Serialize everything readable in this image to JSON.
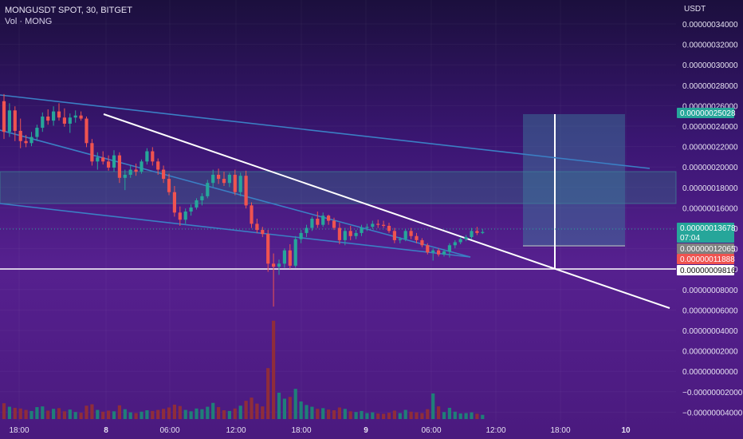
{
  "header": {
    "symbol_line": "MONGUSDT SPOT, 30, BITGET",
    "volume_line": "Vol · MONG"
  },
  "colors": {
    "up": "#26a69a",
    "down": "#ef5350",
    "vol_up": "#1f7f78",
    "vol_down": "#8f2d3a",
    "trendline": "#ffffff",
    "channel": "#3b7fc4",
    "zone_fill": "#2a8f8a",
    "target_fill": "#3f7fa0",
    "current_label": "#26a69a",
    "red_label": "#ef5350",
    "gray_label": "#808080"
  },
  "chart_data": {
    "type": "candlestick",
    "title": "MONGUSDT SPOT, 30, BITGET",
    "series_name": "MONGUSDT",
    "volume_label": "Vol · MONG",
    "currency": "USDT",
    "y_ticks": [
      "0.00000034000",
      "0.00000032000",
      "0.00000030000",
      "0.00000028000",
      "0.00000026000",
      "0.00000024000",
      "0.00000022000",
      "0.00000020000",
      "0.00000018000",
      "0.00000016000",
      "0.00000014000",
      "0.00000012000",
      "0.00000010000",
      "0.00000008000",
      "0.00000006000",
      "0.00000004000",
      "0.00000002000",
      "0.00000000000",
      "−0.00000002000",
      "−0.00000004000"
    ],
    "x_ticks": [
      "18:00",
      "8",
      "06:00",
      "12:00",
      "18:00",
      "9",
      "06:00",
      "12:00",
      "18:00",
      "10"
    ],
    "price_labels": [
      {
        "key": "target",
        "text": "0.00000025028",
        "value": 2.5028e-07
      },
      {
        "key": "current",
        "text": "0.00000013678",
        "value": 1.3678e-07,
        "countdown": "07:04"
      },
      {
        "key": "gray",
        "text": "0.00000012065",
        "value": 1.2065e-07
      },
      {
        "key": "red",
        "text": "0.00000011888",
        "value": 1.1888e-07
      },
      {
        "key": "support",
        "text": "0.00000009816",
        "value": 9.816e-08
      }
    ],
    "candles": [
      {
        "o": 26.5,
        "h": 27.2,
        "l": 22.8,
        "c": 23.5,
        "v": 4.5
      },
      {
        "o": 23.5,
        "h": 26.3,
        "l": 23.0,
        "c": 25.6,
        "v": 3.5
      },
      {
        "o": 25.6,
        "h": 26.0,
        "l": 22.6,
        "c": 23.6,
        "v": 3.2
      },
      {
        "o": 23.6,
        "h": 24.8,
        "l": 21.9,
        "c": 22.6,
        "v": 3.0
      },
      {
        "o": 22.6,
        "h": 23.2,
        "l": 22.0,
        "c": 22.4,
        "v": 2.6
      },
      {
        "o": 22.4,
        "h": 23.5,
        "l": 22.1,
        "c": 23.0,
        "v": 2.3
      },
      {
        "o": 23.0,
        "h": 24.2,
        "l": 22.6,
        "c": 23.9,
        "v": 3.4
      },
      {
        "o": 23.9,
        "h": 25.4,
        "l": 23.5,
        "c": 25.0,
        "v": 3.6
      },
      {
        "o": 25.0,
        "h": 25.7,
        "l": 24.2,
        "c": 24.6,
        "v": 2.4
      },
      {
        "o": 24.6,
        "h": 26.0,
        "l": 24.1,
        "c": 25.5,
        "v": 2.9
      },
      {
        "o": 25.5,
        "h": 26.3,
        "l": 24.6,
        "c": 24.9,
        "v": 3.1
      },
      {
        "o": 24.9,
        "h": 25.8,
        "l": 24.0,
        "c": 24.3,
        "v": 2.2
      },
      {
        "o": 24.3,
        "h": 25.3,
        "l": 23.4,
        "c": 24.9,
        "v": 2.7
      },
      {
        "o": 24.9,
        "h": 25.6,
        "l": 24.4,
        "c": 25.1,
        "v": 2.0
      },
      {
        "o": 25.1,
        "h": 25.5,
        "l": 24.6,
        "c": 24.8,
        "v": 1.8
      },
      {
        "o": 24.8,
        "h": 25.0,
        "l": 22.0,
        "c": 22.4,
        "v": 3.8
      },
      {
        "o": 22.4,
        "h": 22.8,
        "l": 20.2,
        "c": 20.6,
        "v": 4.2
      },
      {
        "o": 20.6,
        "h": 21.5,
        "l": 19.8,
        "c": 21.0,
        "v": 2.6
      },
      {
        "o": 21.0,
        "h": 21.6,
        "l": 20.3,
        "c": 20.6,
        "v": 2.1
      },
      {
        "o": 20.6,
        "h": 21.2,
        "l": 19.7,
        "c": 20.0,
        "v": 2.4
      },
      {
        "o": 20.0,
        "h": 21.7,
        "l": 19.6,
        "c": 21.2,
        "v": 2.2
      },
      {
        "o": 21.2,
        "h": 21.5,
        "l": 18.5,
        "c": 19.0,
        "v": 3.9
      },
      {
        "o": 19.0,
        "h": 19.8,
        "l": 17.8,
        "c": 19.3,
        "v": 2.8
      },
      {
        "o": 19.3,
        "h": 20.2,
        "l": 19.0,
        "c": 19.8,
        "v": 1.9
      },
      {
        "o": 19.8,
        "h": 20.4,
        "l": 19.2,
        "c": 19.6,
        "v": 1.7
      },
      {
        "o": 19.6,
        "h": 20.8,
        "l": 19.4,
        "c": 20.6,
        "v": 2.1
      },
      {
        "o": 20.6,
        "h": 21.9,
        "l": 20.3,
        "c": 21.6,
        "v": 2.5
      },
      {
        "o": 21.6,
        "h": 22.0,
        "l": 20.2,
        "c": 20.6,
        "v": 2.3
      },
      {
        "o": 20.6,
        "h": 20.9,
        "l": 19.3,
        "c": 19.8,
        "v": 2.6
      },
      {
        "o": 19.8,
        "h": 20.2,
        "l": 18.5,
        "c": 18.9,
        "v": 2.9
      },
      {
        "o": 18.9,
        "h": 19.4,
        "l": 17.3,
        "c": 17.6,
        "v": 3.3
      },
      {
        "o": 17.6,
        "h": 18.2,
        "l": 15.2,
        "c": 15.6,
        "v": 4.1
      },
      {
        "o": 15.6,
        "h": 16.2,
        "l": 14.3,
        "c": 14.9,
        "v": 3.7
      },
      {
        "o": 14.9,
        "h": 16.0,
        "l": 14.5,
        "c": 15.7,
        "v": 2.6
      },
      {
        "o": 15.7,
        "h": 16.4,
        "l": 15.3,
        "c": 16.1,
        "v": 2.2
      },
      {
        "o": 16.1,
        "h": 17.0,
        "l": 15.9,
        "c": 16.8,
        "v": 3.0
      },
      {
        "o": 16.8,
        "h": 17.5,
        "l": 16.3,
        "c": 17.2,
        "v": 2.8
      },
      {
        "o": 17.2,
        "h": 18.8,
        "l": 17.0,
        "c": 18.5,
        "v": 3.5
      },
      {
        "o": 18.5,
        "h": 19.8,
        "l": 18.1,
        "c": 19.3,
        "v": 4.6
      },
      {
        "o": 19.3,
        "h": 19.9,
        "l": 18.4,
        "c": 18.9,
        "v": 3.4
      },
      {
        "o": 18.9,
        "h": 19.6,
        "l": 18.2,
        "c": 18.5,
        "v": 2.5
      },
      {
        "o": 18.5,
        "h": 19.5,
        "l": 18.1,
        "c": 19.3,
        "v": 2.3
      },
      {
        "o": 19.3,
        "h": 19.8,
        "l": 17.3,
        "c": 17.6,
        "v": 3.0
      },
      {
        "o": 17.6,
        "h": 19.5,
        "l": 17.2,
        "c": 19.2,
        "v": 3.8
      },
      {
        "o": 19.2,
        "h": 19.7,
        "l": 16.0,
        "c": 16.3,
        "v": 5.2
      },
      {
        "o": 16.3,
        "h": 16.6,
        "l": 14.1,
        "c": 14.5,
        "v": 6.1
      },
      {
        "o": 14.5,
        "h": 15.0,
        "l": 13.6,
        "c": 13.9,
        "v": 4.4
      },
      {
        "o": 13.9,
        "h": 14.2,
        "l": 13.2,
        "c": 13.5,
        "v": 3.6
      },
      {
        "o": 13.5,
        "h": 13.9,
        "l": 9.8,
        "c": 10.6,
        "v": 14.5
      },
      {
        "o": 10.6,
        "h": 11.6,
        "l": 6.4,
        "c": 10.3,
        "v": 28.0
      },
      {
        "o": 10.3,
        "h": 11.0,
        "l": 9.5,
        "c": 10.6,
        "v": 7.5
      },
      {
        "o": 10.6,
        "h": 12.1,
        "l": 10.2,
        "c": 11.9,
        "v": 5.8
      },
      {
        "o": 11.9,
        "h": 12.5,
        "l": 10.1,
        "c": 10.4,
        "v": 6.3
      },
      {
        "o": 10.4,
        "h": 13.3,
        "l": 10.2,
        "c": 13.0,
        "v": 8.6
      },
      {
        "o": 13.0,
        "h": 13.9,
        "l": 12.6,
        "c": 13.6,
        "v": 5.0
      },
      {
        "o": 13.6,
        "h": 14.4,
        "l": 13.2,
        "c": 14.1,
        "v": 4.0
      },
      {
        "o": 14.1,
        "h": 15.2,
        "l": 13.8,
        "c": 15.0,
        "v": 3.5
      },
      {
        "o": 15.0,
        "h": 15.7,
        "l": 14.1,
        "c": 14.4,
        "v": 2.9
      },
      {
        "o": 14.4,
        "h": 15.6,
        "l": 14.2,
        "c": 15.3,
        "v": 3.1
      },
      {
        "o": 15.3,
        "h": 15.4,
        "l": 14.4,
        "c": 14.8,
        "v": 2.7
      },
      {
        "o": 14.8,
        "h": 15.1,
        "l": 13.9,
        "c": 14.1,
        "v": 2.5
      },
      {
        "o": 14.1,
        "h": 14.6,
        "l": 12.5,
        "c": 12.9,
        "v": 3.3
      },
      {
        "o": 12.9,
        "h": 14.1,
        "l": 12.4,
        "c": 13.8,
        "v": 2.9
      },
      {
        "o": 13.8,
        "h": 14.3,
        "l": 12.9,
        "c": 13.3,
        "v": 2.2
      },
      {
        "o": 13.3,
        "h": 13.9,
        "l": 13.0,
        "c": 13.6,
        "v": 2.0
      },
      {
        "o": 13.6,
        "h": 14.4,
        "l": 13.3,
        "c": 14.1,
        "v": 2.3
      },
      {
        "o": 14.1,
        "h": 14.5,
        "l": 13.8,
        "c": 14.2,
        "v": 1.7
      },
      {
        "o": 14.2,
        "h": 14.8,
        "l": 14.0,
        "c": 14.5,
        "v": 1.9
      },
      {
        "o": 14.5,
        "h": 14.9,
        "l": 14.1,
        "c": 14.4,
        "v": 1.6
      },
      {
        "o": 14.4,
        "h": 14.8,
        "l": 14.1,
        "c": 14.3,
        "v": 1.5
      },
      {
        "o": 14.3,
        "h": 14.6,
        "l": 13.6,
        "c": 13.8,
        "v": 1.8
      },
      {
        "o": 13.8,
        "h": 14.1,
        "l": 12.6,
        "c": 12.9,
        "v": 2.4
      },
      {
        "o": 12.9,
        "h": 13.2,
        "l": 12.6,
        "c": 13.0,
        "v": 1.7
      },
      {
        "o": 13.0,
        "h": 14.0,
        "l": 12.8,
        "c": 13.8,
        "v": 2.6
      },
      {
        "o": 13.8,
        "h": 14.1,
        "l": 13.0,
        "c": 13.3,
        "v": 2.1
      },
      {
        "o": 13.3,
        "h": 13.6,
        "l": 12.6,
        "c": 12.9,
        "v": 1.9
      },
      {
        "o": 12.9,
        "h": 13.1,
        "l": 12.2,
        "c": 12.4,
        "v": 1.7
      },
      {
        "o": 12.4,
        "h": 12.6,
        "l": 11.5,
        "c": 11.7,
        "v": 2.8
      },
      {
        "o": 11.7,
        "h": 12.1,
        "l": 10.9,
        "c": 11.9,
        "v": 7.3
      },
      {
        "o": 11.9,
        "h": 12.1,
        "l": 11.3,
        "c": 11.5,
        "v": 3.6
      },
      {
        "o": 11.5,
        "h": 12.0,
        "l": 11.3,
        "c": 11.8,
        "v": 2.0
      },
      {
        "o": 11.8,
        "h": 12.6,
        "l": 11.2,
        "c": 12.4,
        "v": 3.2
      },
      {
        "o": 12.4,
        "h": 12.9,
        "l": 12.1,
        "c": 12.7,
        "v": 2.1
      },
      {
        "o": 12.7,
        "h": 13.2,
        "l": 12.5,
        "c": 13.0,
        "v": 1.6
      },
      {
        "o": 13.0,
        "h": 13.4,
        "l": 12.8,
        "c": 13.2,
        "v": 1.7
      },
      {
        "o": 13.2,
        "h": 14.1,
        "l": 13.0,
        "c": 13.8,
        "v": 1.9
      },
      {
        "o": 13.8,
        "h": 14.2,
        "l": 13.4,
        "c": 13.6,
        "v": 1.5
      },
      {
        "o": 13.6,
        "h": 14.0,
        "l": 13.5,
        "c": 13.7,
        "v": 1.2
      }
    ],
    "trendlines": [
      {
        "name": "descending-resistance",
        "x1": 130,
        "y1": 143,
        "x2": 840,
        "y2": 386
      },
      {
        "name": "channel-upper",
        "x1": 0,
        "y1": 119,
        "x2": 815,
        "y2": 211
      },
      {
        "name": "channel-middle",
        "x1": 0,
        "y1": 163,
        "x2": 590,
        "y2": 322
      },
      {
        "name": "channel-lower",
        "x1": 0,
        "y1": 255,
        "x2": 590,
        "y2": 322
      }
    ]
  }
}
